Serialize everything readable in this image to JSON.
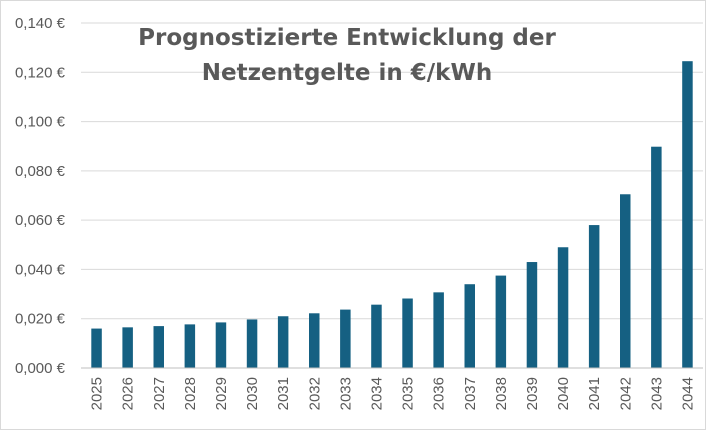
{
  "chart_data": {
    "type": "bar",
    "title_lines": [
      "Prognostizierte Entwicklung der",
      "Netzentgelte in €/kWh"
    ],
    "xlabel": "",
    "ylabel": "",
    "categories": [
      "2025",
      "2026",
      "2027",
      "2028",
      "2029",
      "2030",
      "2031",
      "2032",
      "2033",
      "2034",
      "2035",
      "2036",
      "2037",
      "2038",
      "2039",
      "2040",
      "2041",
      "2042",
      "2043",
      "2044"
    ],
    "values": [
      0.016,
      0.0165,
      0.017,
      0.0177,
      0.0185,
      0.0197,
      0.021,
      0.0222,
      0.0237,
      0.0257,
      0.0282,
      0.0307,
      0.034,
      0.0375,
      0.043,
      0.049,
      0.058,
      0.0705,
      0.0898,
      0.1245
    ],
    "ylim": [
      0,
      0.14
    ],
    "yticks": [
      0,
      0.02,
      0.04,
      0.06,
      0.08,
      0.1,
      0.12,
      0.14
    ],
    "ytick_labels": [
      "0,000 €",
      "0,020 €",
      "0,040 €",
      "0,060 €",
      "0,080 €",
      "0,100 €",
      "0,120 €",
      "0,140 €"
    ],
    "grid": true,
    "legend": "none",
    "colors": {
      "bar": "#156082",
      "grid": "#d9d9d9",
      "axis": "#bfbfbf",
      "text": "#595959"
    }
  }
}
